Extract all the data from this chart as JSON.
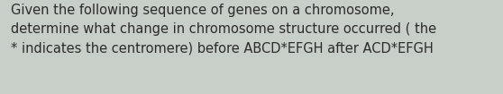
{
  "line1": "Given the following sequence of genes on a chromosome,",
  "line2": "determine what change in chromosome structure occurred ( the",
  "line3": "* indicates the centromere) before ABCD*EFGH after ACD*EFGH",
  "background_color": "#c8cfc8",
  "text_color": "#2b2b2b",
  "font_size": 10.5,
  "fig_width": 5.58,
  "fig_height": 1.05,
  "dpi": 100
}
